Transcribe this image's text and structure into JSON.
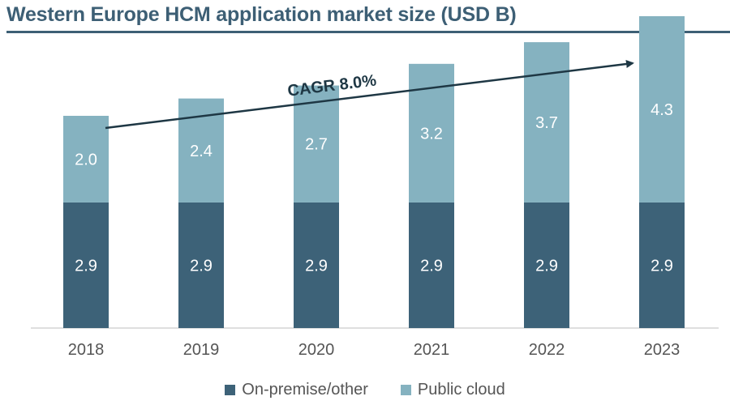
{
  "title": "Western Europe HCM application market size (USD B)",
  "annotation": "CAGR 8.0%",
  "colors": {
    "on_premise": "#3d6278",
    "public_cloud": "#85b2c0",
    "title": "#3d5f75",
    "arrow": "#1e3744"
  },
  "legend": {
    "on_premise": "On-premise/other",
    "public_cloud": "Public cloud"
  },
  "chart_data": {
    "type": "bar",
    "stacked": true,
    "title": "Western Europe HCM application market size (USD B)",
    "categories": [
      "2018",
      "2019",
      "2020",
      "2021",
      "2022",
      "2023"
    ],
    "series": [
      {
        "name": "On-premise/other",
        "values": [
          2.9,
          2.9,
          2.9,
          2.9,
          2.9,
          2.9
        ]
      },
      {
        "name": "Public cloud",
        "values": [
          2.0,
          2.4,
          2.7,
          3.2,
          3.7,
          4.3
        ]
      }
    ],
    "annotations": [
      "CAGR 8.0%"
    ],
    "ylim": [
      0,
      7.2
    ],
    "grid": false,
    "legend_position": "bottom"
  }
}
